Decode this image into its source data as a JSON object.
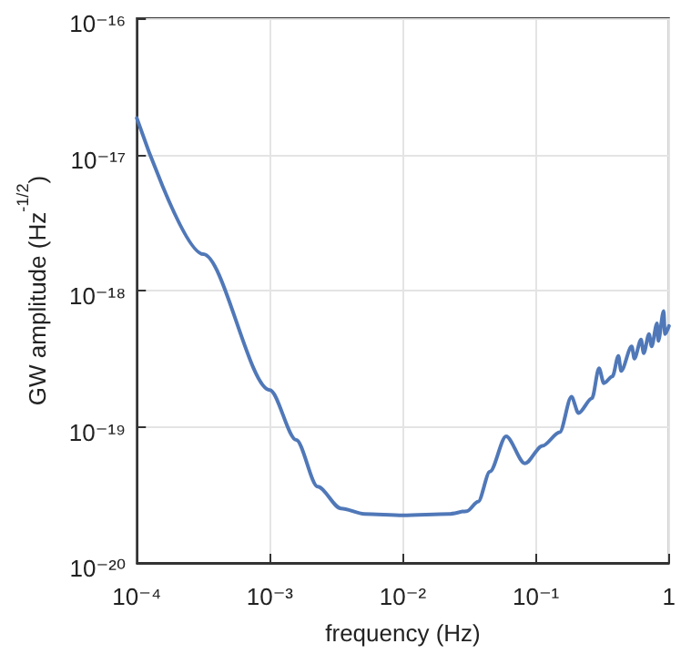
{
  "chart_data": {
    "type": "line",
    "xlabel": "frequency (Hz)",
    "ylabel": "GW amplitude (Hz$^{-1/2}$)",
    "log": "xy",
    "grid": true,
    "marker": "none",
    "line_style": "solid",
    "xlim": [
      0.0001,
      1
    ],
    "ylim": [
      1e-20,
      1e-16
    ],
    "xticks": [
      {
        "value": 0.0001,
        "label": "10⁻⁴"
      },
      {
        "value": 0.001,
        "label": "10⁻³"
      },
      {
        "value": 0.01,
        "label": "10⁻²"
      },
      {
        "value": 0.1,
        "label": "10⁻¹"
      },
      {
        "value": 1,
        "label": "1"
      }
    ],
    "yticks": [
      {
        "value": 1e-20,
        "label": "10⁻²⁰"
      },
      {
        "value": 1e-19,
        "label": "10⁻¹⁹"
      },
      {
        "value": 1e-18,
        "label": "10⁻¹⁸"
      },
      {
        "value": 1e-17,
        "label": "10⁻¹⁷"
      },
      {
        "value": 1e-16,
        "label": "10⁻¹⁶"
      }
    ],
    "x": [
      0.0001,
      0.000316,
      0.001,
      0.00158,
      0.00229,
      0.00343,
      0.00513,
      0.01,
      0.0222,
      0.0302,
      0.0368,
      0.0451,
      0.0597,
      0.0826,
      0.112,
      0.151,
      0.185,
      0.209,
      0.264,
      0.298,
      0.324,
      0.376,
      0.417,
      0.437,
      0.525,
      0.55,
      0.617,
      0.646,
      0.708,
      0.741,
      0.813,
      0.832,
      0.912,
      0.933,
      1
    ],
    "series": [
      {
        "color": "#5078b8",
        "values": [
          1.85e-17,
          1.85e-18,
          1.86e-19,
          8e-20,
          3.63e-20,
          2.51e-20,
          2.29e-20,
          2.24e-20,
          2.29e-20,
          2.4e-20,
          2.82e-20,
          4.68e-20,
          8.5e-20,
          5.37e-20,
          7.24e-20,
          9.12e-20,
          1.66e-19,
          1.26e-19,
          1.62e-19,
          2.69e-19,
          2.09e-19,
          2.34e-19,
          3.31e-19,
          2.57e-19,
          3.89e-19,
          3.16e-19,
          4.37e-19,
          3.47e-19,
          4.79e-19,
          3.89e-19,
          5.75e-19,
          4.27e-19,
          7.08e-19,
          4.79e-19,
          5.5e-19
        ]
      }
    ]
  }
}
